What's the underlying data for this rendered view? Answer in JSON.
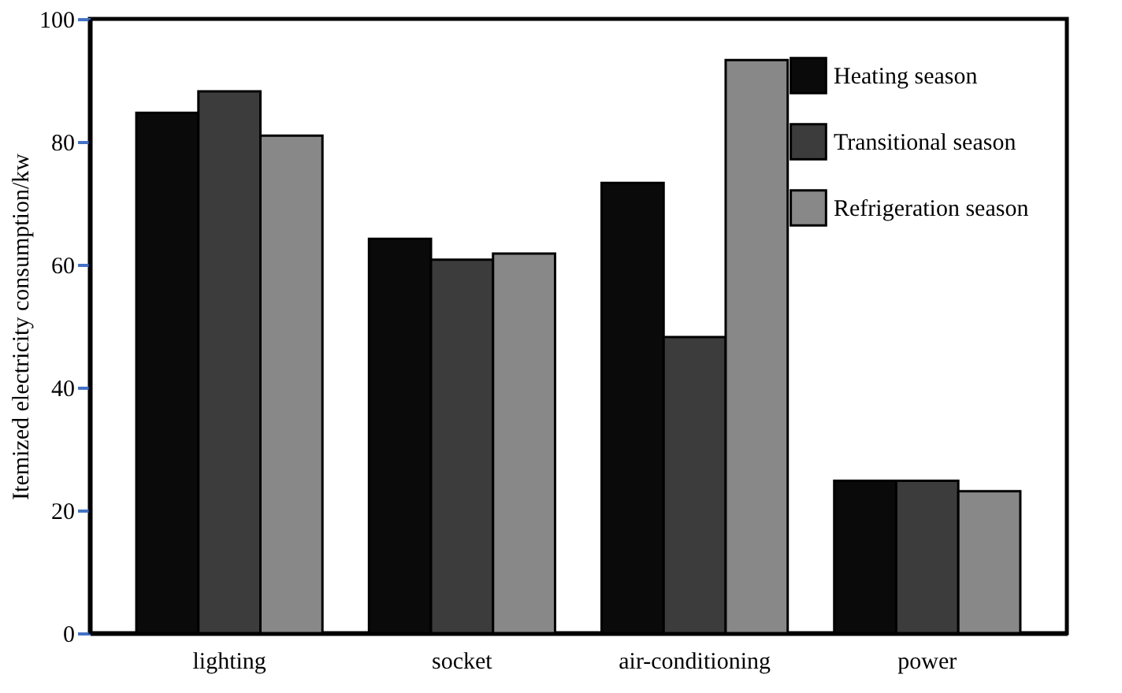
{
  "chart_data": {
    "type": "bar",
    "ylabel": "Itemized electricity consumption/kw",
    "categories": [
      "lighting",
      "socket",
      "air-conditioning",
      "power"
    ],
    "series": [
      {
        "name": "Heating season",
        "color": "#0a0a0a",
        "values": [
          84.7,
          64.2,
          73.3,
          24.8
        ]
      },
      {
        "name": "Transitional season",
        "color": "#3c3c3c",
        "values": [
          88.2,
          60.8,
          48.2,
          24.8
        ]
      },
      {
        "name": "Refrigeration season",
        "color": "#888888",
        "values": [
          81.0,
          61.8,
          93.3,
          23.1
        ]
      }
    ],
    "ylim": [
      0,
      100
    ],
    "yticks": [
      0,
      20,
      40,
      60,
      80,
      100
    ],
    "grid": false,
    "legend": "top right"
  }
}
